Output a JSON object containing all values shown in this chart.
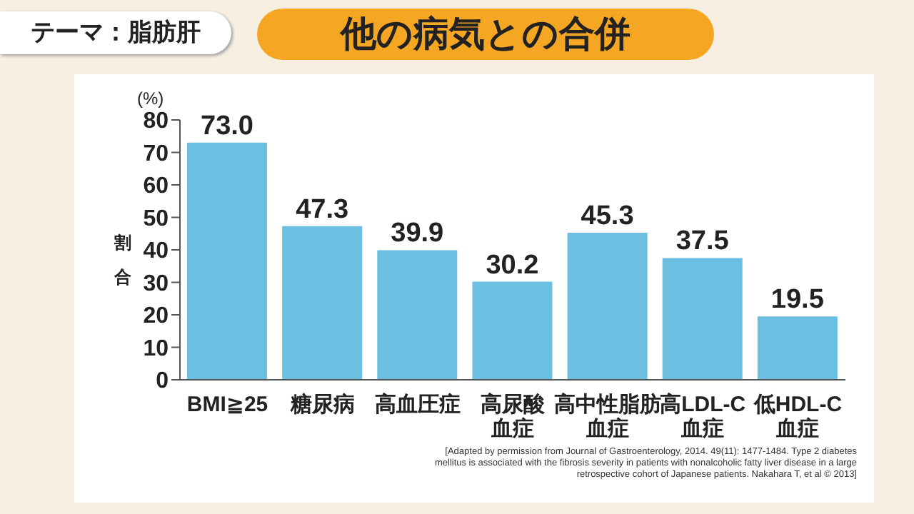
{
  "chart_data": {
    "type": "bar",
    "title": "他の病気との合併",
    "subtitle": "テーマ：脂肪肝",
    "ylabel": "割合",
    "categories": [
      "BMI≧25",
      "糖尿病",
      "高血圧症",
      "高尿酸血症",
      "高中性脂肪血症",
      "高LDL-C血症",
      "低HDL-C血症"
    ],
    "values": [
      73.0,
      47.3,
      39.9,
      30.2,
      45.3,
      37.5,
      19.5
    ],
    "value_labels": [
      "73.0",
      "47.3",
      "39.9",
      "30.2",
      "45.3",
      "37.5",
      "19.5"
    ],
    "color": "#6cbfe0",
    "ylim": [
      0,
      80
    ],
    "yticks": [
      0,
      10,
      20,
      30,
      40,
      50,
      60,
      70,
      80
    ],
    "grid": false,
    "annotations": [
      "(%)",
      "[Adapted by permission from Journal of Gastroenterology, 2014. 49(11): 1477-1484. Type 2 diabetes mellitus is associated with the fibrosis severity in patients with nonalcoholic fatty liver disease in a large retrospective cohort of Japanese patients. Nakahara T, et al © 2013]"
    ]
  }
}
